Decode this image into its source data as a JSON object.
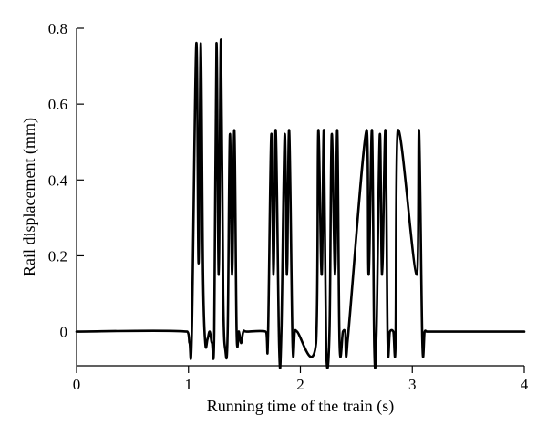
{
  "chart_data": {
    "type": "line",
    "title": "",
    "xlabel": "Running time of the train (s)",
    "ylabel": "Rail displacement (mm)",
    "xlim": [
      0,
      4
    ],
    "ylim": [
      -0.09,
      0.8
    ],
    "x_ticks": [
      0,
      1,
      2,
      3,
      4
    ],
    "x_tick_labels": [
      "0",
      "1",
      "2",
      "3",
      "4"
    ],
    "y_ticks": [
      0,
      0.2,
      0.4,
      0.6,
      0.8
    ],
    "y_tick_labels": [
      "0",
      "0.2",
      "0.4",
      "0.6",
      "0.8"
    ],
    "grid": false,
    "legend": "none",
    "line_color": "#000000",
    "series": [
      {
        "x": [
          0.0,
          0.99,
          1.01,
          1.03,
          1.07,
          1.09,
          1.11,
          1.13,
          1.15,
          1.17,
          1.19,
          1.21,
          1.23,
          1.25,
          1.27,
          1.29,
          1.31,
          1.33,
          1.35,
          1.37,
          1.39,
          1.41,
          1.43,
          1.45,
          1.47,
          1.49,
          1.52,
          1.69,
          1.71,
          1.74,
          1.76,
          1.78,
          1.81,
          1.83,
          1.86,
          1.88,
          1.9,
          1.93,
          1.95,
          1.97,
          2.14,
          2.16,
          2.19,
          2.21,
          2.23,
          2.26,
          2.28,
          2.31,
          2.33,
          2.35,
          2.38,
          2.4,
          2.42,
          2.59,
          2.61,
          2.64,
          2.66,
          2.68,
          2.71,
          2.73,
          2.76,
          2.78,
          2.8,
          2.83,
          2.85,
          2.87,
          3.04,
          3.06,
          3.09,
          3.11,
          3.13,
          3.16,
          3.18,
          3.21,
          3.23,
          3.25,
          4.0
        ],
        "y": [
          0.0,
          0.0,
          -0.03,
          0.0,
          0.76,
          0.18,
          0.76,
          0.15,
          -0.03,
          -0.02,
          0.0,
          -0.03,
          0.0,
          0.76,
          0.15,
          0.77,
          0.1,
          -0.05,
          0.0,
          0.52,
          0.15,
          0.53,
          0.0,
          0.0,
          -0.03,
          0.0,
          0.0,
          0.0,
          -0.02,
          0.52,
          0.15,
          0.53,
          -0.04,
          0.0,
          0.52,
          0.15,
          0.53,
          -0.03,
          0.0,
          0.0,
          -0.03,
          0.53,
          0.15,
          0.53,
          -0.04,
          0.0,
          0.52,
          0.15,
          0.53,
          -0.03,
          0.0,
          0.0,
          -0.03,
          0.53,
          0.15,
          0.53,
          -0.04,
          0.0,
          0.52,
          0.15,
          0.53,
          -0.03,
          0.0,
          0.0,
          -0.03,
          0.53,
          0.15,
          0.53,
          -0.03,
          0.0,
          0.0,
          0.0,
          0.0,
          0.0,
          0.0,
          0.0,
          0.0
        ]
      }
    ]
  }
}
